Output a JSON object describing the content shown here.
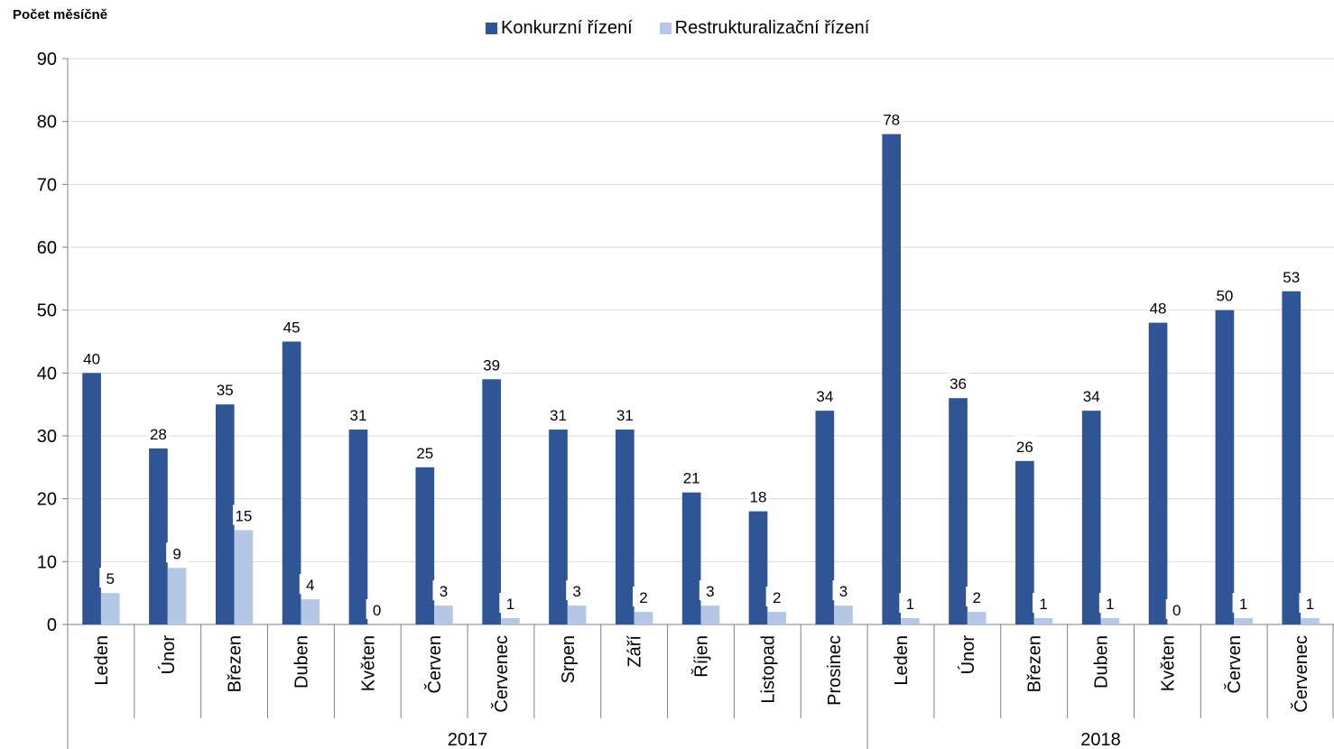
{
  "chart_data": {
    "type": "bar",
    "ylabel": "Počet měsíčně",
    "ylim": [
      0,
      90
    ],
    "yticks": [
      0,
      10,
      20,
      30,
      40,
      50,
      60,
      70,
      80,
      90
    ],
    "grid": true,
    "legend_position": "top",
    "groups": [
      {
        "label": "2017",
        "categories": [
          "Leden",
          "Únor",
          "Březen",
          "Duben",
          "Květen",
          "Červen",
          "Červenec",
          "Srpen",
          "Září",
          "Říjen",
          "Listopad",
          "Prosinec"
        ]
      },
      {
        "label": "2018",
        "categories": [
          "Leden",
          "Únor",
          "Březen",
          "Duben",
          "Květen",
          "Červen",
          "Červenec"
        ]
      }
    ],
    "series": [
      {
        "name": "Konkurzní řízení",
        "color": "#2F5597",
        "values": [
          40,
          28,
          35,
          45,
          31,
          25,
          39,
          31,
          31,
          21,
          18,
          34,
          78,
          36,
          26,
          34,
          48,
          50,
          53
        ]
      },
      {
        "name": "Restrukturalizační řízení",
        "color": "#B4C7E7",
        "values": [
          5,
          9,
          15,
          4,
          0,
          3,
          1,
          3,
          2,
          3,
          2,
          3,
          1,
          2,
          1,
          1,
          0,
          1,
          1
        ]
      }
    ]
  }
}
